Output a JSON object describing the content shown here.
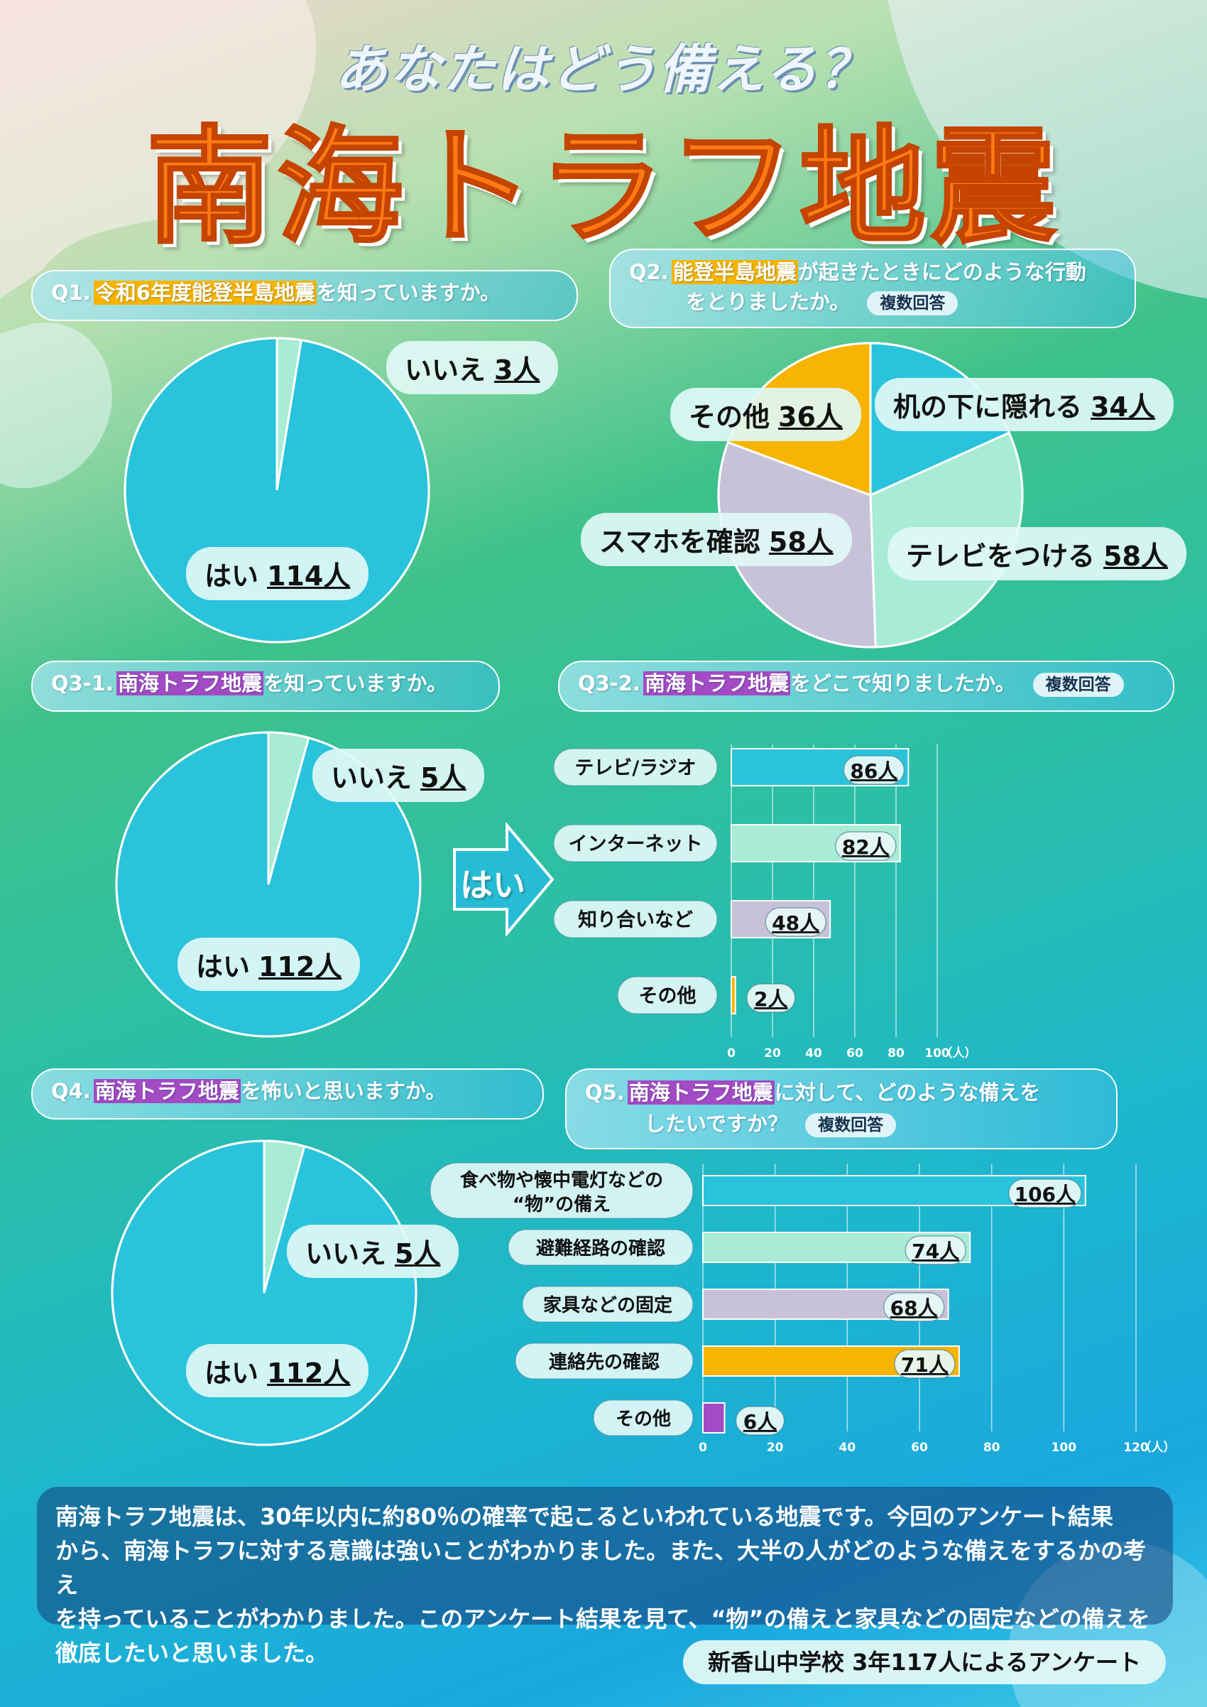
{
  "header": {
    "subtitle": "あなたはどう備える？",
    "title": "南海トラフ地震"
  },
  "q1": {
    "num": "Q1.",
    "pre": "",
    "highlight": "令和6年度能登半島地震",
    "post": "を知っていますか。",
    "no_label": "いいえ",
    "no_value": "3人",
    "yes_label": "はい",
    "yes_value": "114人"
  },
  "q2": {
    "num": "Q2.",
    "highlight": "能登半島地震",
    "post_line1": "が起きたときにどのような行動",
    "line2": "をとりましたか。",
    "badge": "複数回答",
    "labels": [
      {
        "name": "机の下に隠れる",
        "value": "34人"
      },
      {
        "name": "テレビをつける",
        "value": "58人"
      },
      {
        "name": "スマホを確認",
        "value": "58人"
      },
      {
        "name": "その他",
        "value": "36人"
      }
    ]
  },
  "q3_1": {
    "num": "Q3-1.",
    "highlight": "南海トラフ地震",
    "post": "を知っていますか。",
    "no_label": "いいえ",
    "no_value": "5人",
    "yes_label": "はい",
    "yes_value": "112人"
  },
  "arrow": {
    "label": "はい"
  },
  "q3_2": {
    "num": "Q3-2.",
    "highlight": "南海トラフ地震",
    "post": "をどこで知りましたか。",
    "badge": "複数回答",
    "unit": "（人）"
  },
  "q4": {
    "num": "Q4.",
    "highlight": "南海トラフ地震",
    "post": "を怖いと思いますか。",
    "no_label": "いいえ",
    "no_value": "5人",
    "yes_label": "はい",
    "yes_value": "112人"
  },
  "q5": {
    "num": "Q5.",
    "highlight": "南海トラフ地震",
    "post_line1": "に対して、どのような備えを",
    "line2": "したいですか？",
    "badge": "複数回答",
    "unit": "（人）",
    "cat0_line1": "食べ物や懐中電灯などの",
    "cat0_line2": "“物”の備え"
  },
  "summary": {
    "line1": "南海トラフ地震は、30年以内に約80％の確率で起こるといわれている地震です。今回のアンケート結果",
    "line2": "から、南海トラフに対する意識は強いことがわかりました。また、大半の人がどのような備えをするかの考え",
    "line3": "を持っていることがわかりました。このアンケート結果を見て、“物”の備えと家具などの固定などの備えを",
    "line4": "徹底したいと思いました。"
  },
  "footer": {
    "text": "新香山中学校 3年117人によるアンケート"
  },
  "colors": {
    "teal": "#29c3dc",
    "mint": "#a8ecd6",
    "lavender": "#c8c2d8",
    "orange": "#f7b400",
    "purple": "#a24bc4",
    "brand": "#ff7a14"
  },
  "chart_data": [
    {
      "type": "pie",
      "title": "Q1",
      "categories": [
        "はい",
        "いいえ"
      ],
      "values": [
        114,
        3
      ],
      "colors": [
        "#29c3dc",
        "#a8ecd6"
      ]
    },
    {
      "type": "pie",
      "title": "Q2",
      "categories": [
        "机の下に隠れる",
        "テレビをつける",
        "スマホを確認",
        "その他"
      ],
      "values": [
        34,
        58,
        58,
        36
      ],
      "colors": [
        "#29c3dc",
        "#a8ecd6",
        "#c8c2d8",
        "#f7b400"
      ]
    },
    {
      "type": "pie",
      "title": "Q3-1",
      "categories": [
        "はい",
        "いいえ"
      ],
      "values": [
        112,
        5
      ],
      "colors": [
        "#29c3dc",
        "#a8ecd6"
      ]
    },
    {
      "type": "bar",
      "title": "Q3-2",
      "categories": [
        "テレビ/ラジオ",
        "インターネット",
        "知り合いなど",
        "その他"
      ],
      "values": [
        86,
        82,
        48,
        2
      ],
      "value_labels": [
        "86人",
        "82人",
        "48人",
        "2人"
      ],
      "colors": [
        "#29c3dc",
        "#a8ecd6",
        "#c8c2d8",
        "#f7b400"
      ],
      "xlim": [
        0,
        100
      ],
      "ticks": [
        "0",
        "20",
        "40",
        "60",
        "80",
        "100"
      ],
      "unit": "（人）",
      "orientation": "horizontal"
    },
    {
      "type": "pie",
      "title": "Q4",
      "categories": [
        "はい",
        "いいえ"
      ],
      "values": [
        112,
        5
      ],
      "colors": [
        "#29c3dc",
        "#a8ecd6"
      ]
    },
    {
      "type": "bar",
      "title": "Q5",
      "categories": [
        "食べ物や懐中電灯などの“物”の備え",
        "避難経路の確認",
        "家具などの固定",
        "連絡先の確認",
        "その他"
      ],
      "values": [
        106,
        74,
        68,
        71,
        6
      ],
      "value_labels": [
        "106人",
        "74人",
        "68人",
        "71人",
        "6人"
      ],
      "colors": [
        "#29c3dc",
        "#a8ecd6",
        "#c8c2d8",
        "#f7b400",
        "#a24bc4"
      ],
      "xlim": [
        0,
        120
      ],
      "ticks": [
        "0",
        "20",
        "40",
        "60",
        "80",
        "100",
        "120"
      ],
      "unit": "（人）",
      "orientation": "horizontal"
    }
  ]
}
